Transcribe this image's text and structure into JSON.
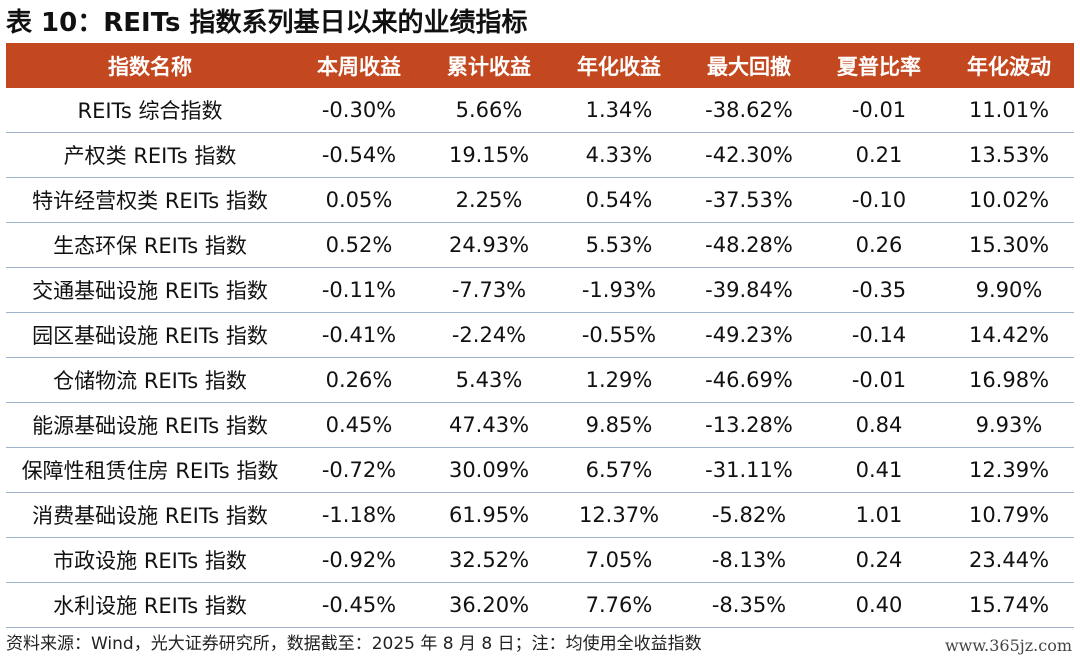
{
  "title": "表 10：REITs 指数系列基日以来的业绩指标",
  "table": {
    "headers": [
      "指数名称",
      "本周收益",
      "累计收益",
      "年化收益",
      "最大回撤",
      "夏普比率",
      "年化波动"
    ],
    "rows": [
      [
        "REITs 综合指数",
        "-0.30%",
        "5.66%",
        "1.34%",
        "-38.62%",
        "-0.01",
        "11.01%"
      ],
      [
        "产权类 REITs 指数",
        "-0.54%",
        "19.15%",
        "4.33%",
        "-42.30%",
        "0.21",
        "13.53%"
      ],
      [
        "特许经营权类 REITs 指数",
        "0.05%",
        "2.25%",
        "0.54%",
        "-37.53%",
        "-0.10",
        "10.02%"
      ],
      [
        "生态环保 REITs 指数",
        "0.52%",
        "24.93%",
        "5.53%",
        "-48.28%",
        "0.26",
        "15.30%"
      ],
      [
        "交通基础设施 REITs 指数",
        "-0.11%",
        "-7.73%",
        "-1.93%",
        "-39.84%",
        "-0.35",
        "9.90%"
      ],
      [
        "园区基础设施 REITs 指数",
        "-0.41%",
        "-2.24%",
        "-0.55%",
        "-49.23%",
        "-0.14",
        "14.42%"
      ],
      [
        "仓储物流 REITs 指数",
        "0.26%",
        "5.43%",
        "1.29%",
        "-46.69%",
        "-0.01",
        "16.98%"
      ],
      [
        "能源基础设施 REITs 指数",
        "0.45%",
        "47.43%",
        "9.85%",
        "-13.28%",
        "0.84",
        "9.93%"
      ],
      [
        "保障性租赁住房 REITs 指数",
        "-0.72%",
        "30.09%",
        "6.57%",
        "-31.11%",
        "0.41",
        "12.39%"
      ],
      [
        "消费基础设施 REITs 指数",
        "-1.18%",
        "61.95%",
        "12.37%",
        "-5.82%",
        "1.01",
        "10.79%"
      ],
      [
        "市政设施 REITs 指数",
        "-0.92%",
        "32.52%",
        "7.05%",
        "-8.13%",
        "0.24",
        "23.44%"
      ],
      [
        "水利设施 REITs 指数",
        "-0.45%",
        "36.20%",
        "7.76%",
        "-8.35%",
        "0.40",
        "15.74%"
      ]
    ]
  },
  "footer": "资料来源：Wind，光大证券研究所，数据截至：2025 年 8 月 8 日；注：均使用全收益指数",
  "watermark": "www.365jz.com",
  "colors": {
    "header_bg": "#c3471f",
    "header_text": "#ffffff",
    "row_divider": "#9fb3cc"
  }
}
